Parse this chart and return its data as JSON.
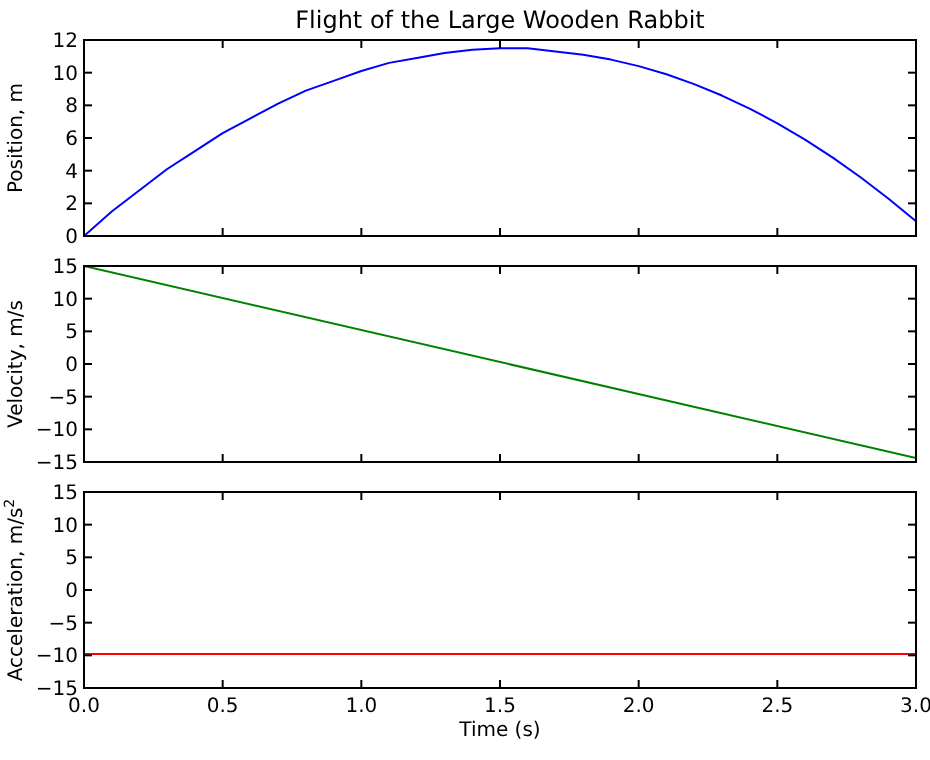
{
  "chart_data": [
    {
      "type": "line",
      "title": "Flight of the Large Wooden Rabbit",
      "ylabel": "Position, m",
      "xlim": [
        0,
        3
      ],
      "xticks": [
        {
          "value": 0,
          "label": null
        },
        {
          "value": 0.5,
          "label": null
        },
        {
          "value": 1,
          "label": null
        },
        {
          "value": 1.5,
          "label": null
        },
        {
          "value": 2,
          "label": null
        },
        {
          "value": 2.5,
          "label": null
        },
        {
          "value": 3,
          "label": null
        }
      ],
      "ylim": [
        0,
        12
      ],
      "yticks": [
        0,
        2,
        4,
        6,
        8,
        10,
        12
      ],
      "tick_labels": "y",
      "x": [
        0,
        0.1,
        0.2,
        0.3,
        0.4,
        0.5,
        0.6,
        0.7,
        0.8,
        0.9,
        1,
        1.1,
        1.2,
        1.3,
        1.4,
        1.5,
        1.6,
        1.7,
        1.8,
        1.9,
        2,
        2.1,
        2.2,
        2.3,
        2.4,
        2.5,
        2.6,
        2.7,
        2.8,
        2.9,
        3
      ],
      "series": [
        {
          "color": "#0000ff",
          "values": [
            0,
            1.5,
            2.8,
            4.1,
            5.2,
            6.3,
            7.2,
            8.1,
            8.9,
            9.5,
            10.1,
            10.6,
            10.9,
            11.2,
            11.4,
            11.5,
            11.5,
            11.3,
            11.1,
            10.8,
            10.4,
            9.9,
            9.3,
            8.6,
            7.8,
            6.9,
            5.9,
            4.8,
            3.6,
            2.3,
            0.9
          ]
        }
      ]
    },
    {
      "type": "line",
      "ylabel": "Velocity, m/s",
      "xlim": [
        0,
        3
      ],
      "xticks": [
        {
          "value": 0,
          "label": null
        },
        {
          "value": 0.5,
          "label": null
        },
        {
          "value": 1,
          "label": null
        },
        {
          "value": 1.5,
          "label": null
        },
        {
          "value": 2,
          "label": null
        },
        {
          "value": 2.5,
          "label": null
        },
        {
          "value": 3,
          "label": null
        }
      ],
      "ylim": [
        -15,
        15
      ],
      "yticks": [
        {
          "value": -15,
          "label": "−15"
        },
        {
          "value": -10,
          "label": "−10"
        },
        {
          "value": -5,
          "label": "−5"
        },
        0,
        5,
        10,
        15
      ],
      "tick_labels": "y",
      "x": [
        0,
        3
      ],
      "series": [
        {
          "color": "#008000",
          "values": [
            15,
            -14.4
          ]
        }
      ]
    },
    {
      "type": "line",
      "ylabel": "Acceleration, m/s$^{2}$",
      "xlabel": "Time (s)",
      "xlim": [
        0,
        3
      ],
      "xticks": [
        {
          "value": 0,
          "label": "0.0"
        },
        {
          "value": 0.5,
          "label": "0.5"
        },
        {
          "value": 1,
          "label": "1.0"
        },
        {
          "value": 1.5,
          "label": "1.5"
        },
        {
          "value": 2,
          "label": "2.0"
        },
        {
          "value": 2.5,
          "label": "2.5"
        },
        {
          "value": 3,
          "label": "3.0"
        }
      ],
      "ylim": [
        -15,
        15
      ],
      "yticks": [
        {
          "value": -15,
          "label": "−15"
        },
        {
          "value": -10,
          "label": "−10"
        },
        {
          "value": -5,
          "label": "−5"
        },
        0,
        5,
        10,
        15
      ],
      "x": [
        0,
        3
      ],
      "series": [
        {
          "color": "#ff0000",
          "values": [
            -9.8,
            -9.8
          ]
        }
      ]
    }
  ]
}
